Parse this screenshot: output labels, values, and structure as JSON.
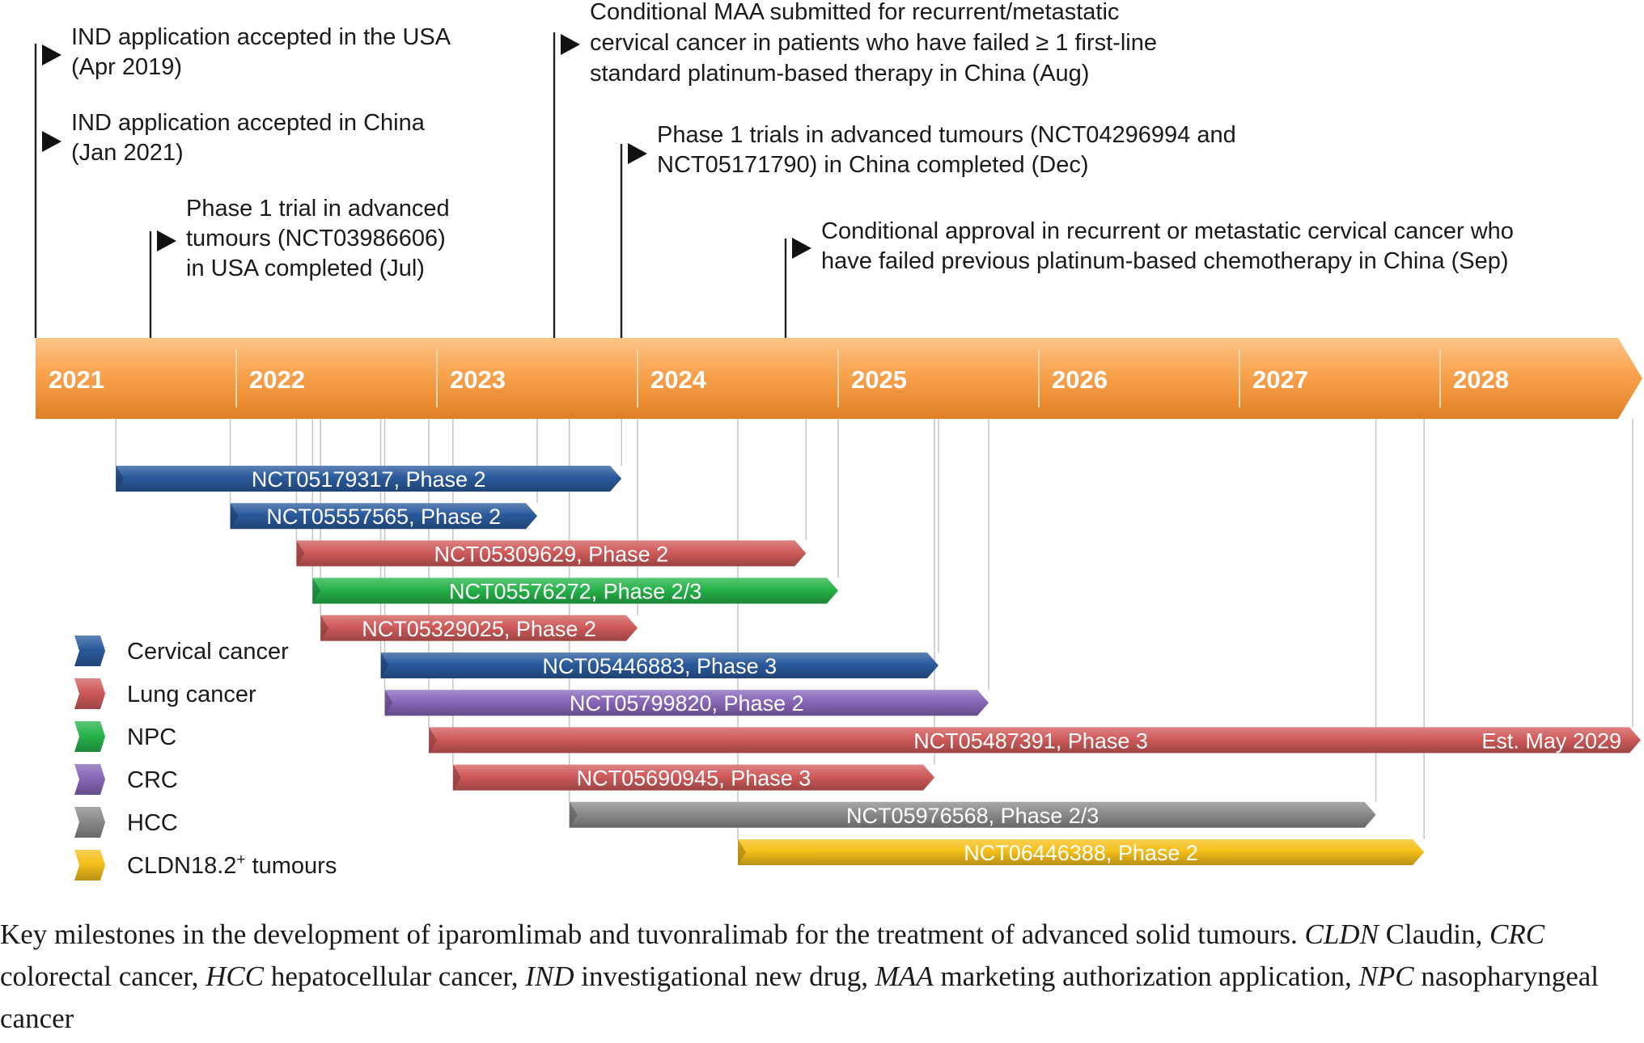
{
  "timeline": {
    "years": [
      "2021",
      "2022",
      "2023",
      "2024",
      "2025",
      "2026",
      "2027",
      "2028"
    ],
    "start_year": 2021,
    "end_year": 2029
  },
  "milestones": [
    {
      "id": "ind-usa",
      "date": 2021.0,
      "lines": [
        "IND application accepted in the USA",
        "(Apr 2019)"
      ]
    },
    {
      "id": "ind-china",
      "date": 2021.0,
      "lines": [
        "IND application accepted in China",
        "(Jan 2021)"
      ]
    },
    {
      "id": "phase1-usa",
      "date": 2021.57,
      "lines": [
        "Phase 1 trial in advanced",
        "tumours (NCT03986606)",
        "in USA completed (Jul)"
      ]
    },
    {
      "id": "maa",
      "date": 2023.58,
      "lines": [
        "Conditional MAA submitted for recurrent/metastatic",
        "cervical cancer in patients who have failed ≥ 1 first-line",
        "standard platinum-based therapy in China (Aug)"
      ]
    },
    {
      "id": "phase1-china",
      "date": 2023.92,
      "lines": [
        "Phase 1 trials in advanced tumours (NCT04296994 and",
        "NCT05171790) in China completed (Dec)"
      ]
    },
    {
      "id": "approval",
      "date": 2024.74,
      "lines": [
        "Conditional approval in recurrent or metastatic cervical cancer who",
        "have failed previous platinum-based chemotherapy  in China (Sep)"
      ]
    }
  ],
  "trials": [
    {
      "label": "NCT05179317, Phase 2",
      "start": 2021.4,
      "end": 2023.92,
      "category": "cervical"
    },
    {
      "label": "NCT05557565, Phase 2",
      "start": 2021.97,
      "end": 2023.5,
      "category": "cervical"
    },
    {
      "label": "NCT05309629, Phase 2",
      "start": 2022.3,
      "end": 2024.84,
      "category": "lung"
    },
    {
      "label": "NCT05576272, Phase 2/3",
      "start": 2022.38,
      "end": 2025.0,
      "category": "npc"
    },
    {
      "label": "NCT05329025, Phase 2",
      "start": 2022.42,
      "end": 2024.0,
      "category": "lung"
    },
    {
      "label": "NCT05446883, Phase 3",
      "start": 2022.72,
      "end": 2025.5,
      "category": "cervical"
    },
    {
      "label": "NCT05799820, Phase 2",
      "start": 2022.74,
      "end": 2025.75,
      "category": "crc"
    },
    {
      "label": "NCT05487391, Phase 3",
      "start": 2022.96,
      "end": 2029.0,
      "category": "lung",
      "end_label": "Est. May 2029"
    },
    {
      "label": "NCT05690945, Phase 3",
      "start": 2023.08,
      "end": 2025.48,
      "category": "lung"
    },
    {
      "label": "NCT05976568, Phase 2/3",
      "start": 2023.66,
      "end": 2027.68,
      "category": "hcc"
    },
    {
      "label": "NCT06446388, Phase 2",
      "start": 2024.5,
      "end": 2027.92,
      "category": "cldn"
    }
  ],
  "legend": [
    {
      "key": "cervical",
      "label": "Cervical cancer",
      "color": "#2a5a9c"
    },
    {
      "key": "lung",
      "label": "Lung cancer",
      "color": "#d05a5a"
    },
    {
      "key": "npc",
      "label": "NPC",
      "color": "#27b34a"
    },
    {
      "key": "crc",
      "label": "CRC",
      "color": "#8766b8"
    },
    {
      "key": "hcc",
      "label": "HCC",
      "color": "#8a8a8a"
    },
    {
      "key": "cldn",
      "label": "CLDN18.2",
      "label_sup": "+",
      "label_tail": " tumours",
      "color": "#f5c01a"
    }
  ],
  "colors": {
    "timeline_bar": "#f9a24d",
    "timeline_bar_light": "#fbc487",
    "timeline_bar_dark": "#e07f25",
    "guide_line": "#c8c8c8",
    "milestone_line": "#222222"
  },
  "caption": {
    "segments": [
      {
        "text": "Key milestones in the development of iparomlimab and tuvonralimab  for the treatment of advanced solid tumours. ",
        "italic": false
      },
      {
        "text": "CLDN",
        "italic": true
      },
      {
        "text": " Claudin, ",
        "italic": false
      },
      {
        "text": "CRC",
        "italic": true
      },
      {
        "text": " colorectal cancer, ",
        "italic": false
      },
      {
        "text": "HCC",
        "italic": true
      },
      {
        "text": " hepatocellular cancer, ",
        "italic": false
      },
      {
        "text": "IND",
        "italic": true
      },
      {
        "text": " investigational new drug, ",
        "italic": false
      },
      {
        "text": "MAA",
        "italic": true
      },
      {
        "text": " marketing authorization application, ",
        "italic": false
      },
      {
        "text": "NPC",
        "italic": true
      },
      {
        "text": " nasopharyngeal cancer",
        "italic": false
      }
    ]
  }
}
